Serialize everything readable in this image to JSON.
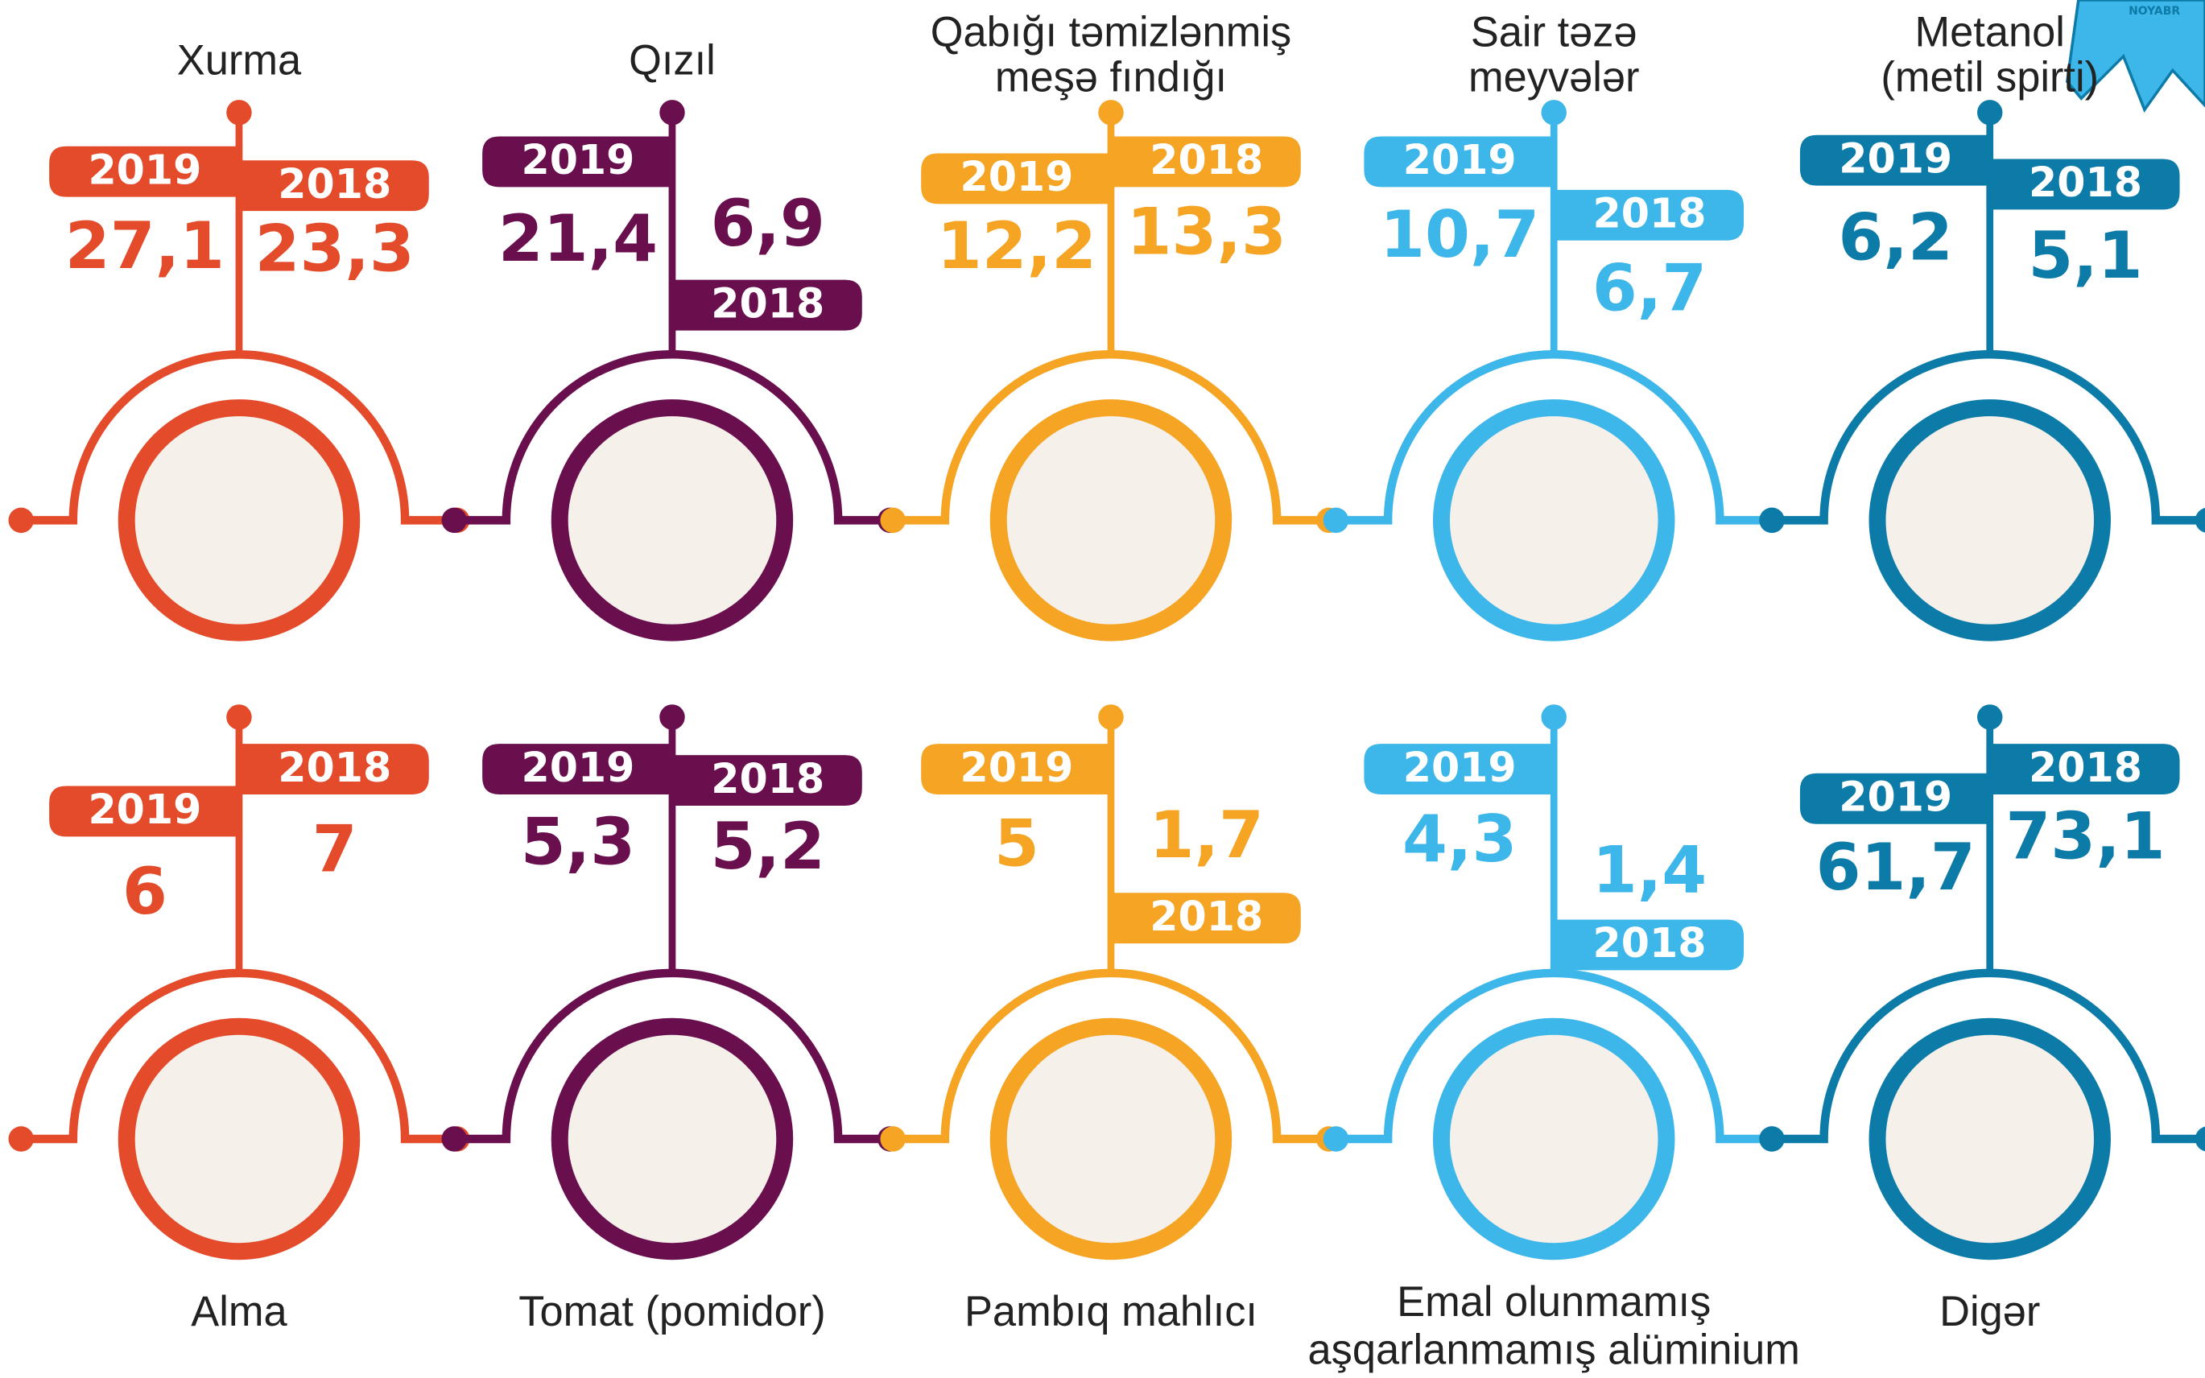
{
  "logo": "NOYABR",
  "items": [
    {
      "label": [
        "Xurma"
      ],
      "color": "#e34b2b",
      "year2019": "2019",
      "value2019": "27,1",
      "year2018": "2018",
      "value2018": "23,3"
    },
    {
      "label": [
        "Qızıl"
      ],
      "color": "#6a0f4e",
      "year2019": "2019",
      "value2019": "21,4",
      "year2018": "2018",
      "value2018": "6,9"
    },
    {
      "label": [
        "Qabığı təmizlənmiş",
        "meşə fındığı"
      ],
      "color": "#f5a424",
      "year2019": "2019",
      "value2019": "12,2",
      "year2018": "2018",
      "value2018": "13,3"
    },
    {
      "label": [
        "Sair təzə",
        "meyvələr"
      ],
      "color": "#3db6ea",
      "year2019": "2019",
      "value2019": "10,7",
      "year2018": "2018",
      "value2018": "6,7"
    },
    {
      "label": [
        "Metanol",
        "(metil spirti)"
      ],
      "color": "#0c7ba8",
      "year2019": "2019",
      "value2019": "6,2",
      "year2018": "2018",
      "value2018": "5,1"
    },
    {
      "label": [
        "Alma"
      ],
      "color": "#e34b2b",
      "year2019": "2019",
      "value2019": "6",
      "year2018": "2018",
      "value2018": "7"
    },
    {
      "label": [
        "Tomat (pomidor)"
      ],
      "color": "#6a0f4e",
      "year2019": "2019",
      "value2019": "5,3",
      "year2018": "2018",
      "value2018": "5,2"
    },
    {
      "label": [
        "Pambıq mahlıcı"
      ],
      "color": "#f5a424",
      "year2019": "2019",
      "value2019": "5",
      "year2018": "2018",
      "value2018": "1,7"
    },
    {
      "label": [
        "Emal olunmamış",
        "aşqarlanmamış alüminium"
      ],
      "color": "#3db6ea",
      "year2019": "2019",
      "value2019": "4,3",
      "year2018": "2018",
      "value2018": "1,4"
    },
    {
      "label": [
        "Digər"
      ],
      "color": "#0c7ba8",
      "year2019": "2019",
      "value2019": "61,7",
      "year2018": "2018",
      "value2018": "73,1"
    }
  ]
}
